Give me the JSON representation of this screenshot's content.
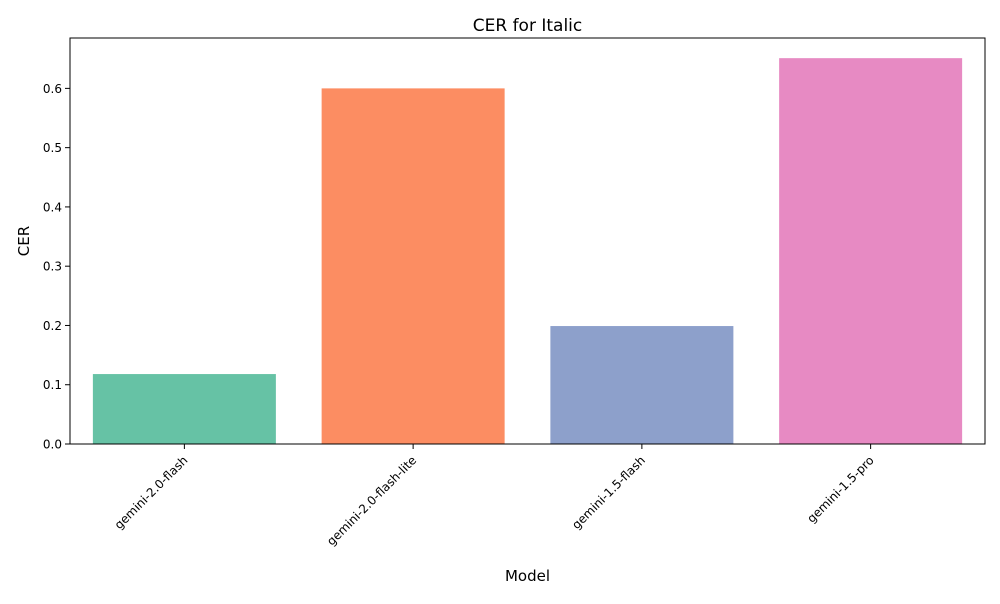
{
  "chart_data": {
    "type": "bar",
    "title": "CER for Italic",
    "xlabel": "Model",
    "ylabel": "CER",
    "categories": [
      "gemini-2.0-flash",
      "gemini-2.0-flash-lite",
      "gemini-1.5-flash",
      "gemini-1.5-pro"
    ],
    "values": [
      0.118,
      0.6,
      0.199,
      0.651
    ],
    "colors": [
      "#66c2a5",
      "#fc8d62",
      "#8da0cb",
      "#e78ac3"
    ],
    "ylim": [
      0,
      0.685
    ],
    "yticks": [
      "0.0",
      "0.1",
      "0.2",
      "0.3",
      "0.4",
      "0.5",
      "0.6"
    ],
    "grid": false,
    "legend": "none"
  }
}
